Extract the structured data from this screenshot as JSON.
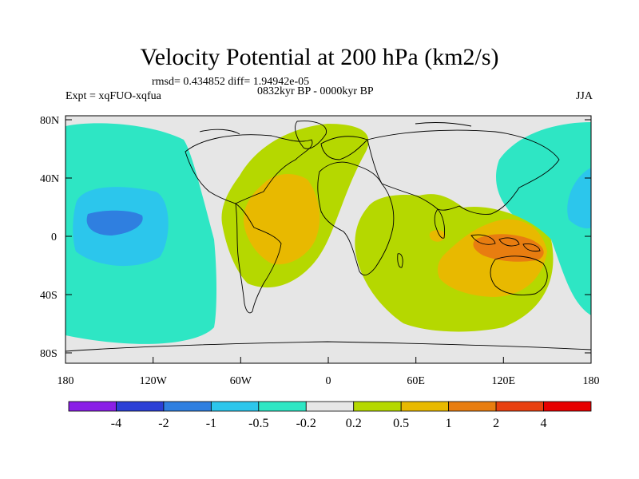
{
  "title": "Velocity Potential at 200 hPa (km2/s)",
  "stats_line": "rmsd= 0.434852  diff= 1.94942e-05",
  "period_line": "0832kyr BP - 0000kyr BP",
  "experiment_label": "Expt = xqFUO-xqfua",
  "season_label": "JJA",
  "map": {
    "lat_ticks": [
      "80N",
      "40N",
      "0",
      "40S",
      "80S"
    ],
    "lon_ticks": [
      "180",
      "120W",
      "60W",
      "0",
      "60E",
      "120E",
      "180"
    ]
  },
  "colorbar": {
    "labels": [
      "-4",
      "-2",
      "-1",
      "-0.5",
      "-0.2",
      "0.2",
      "0.5",
      "1",
      "2",
      "4"
    ],
    "colors": [
      "#8a1fe6",
      "#2b3fd6",
      "#2f7fe0",
      "#2cc6ec",
      "#2ee6c4",
      "#e6e6e6",
      "#b5d800",
      "#e8b900",
      "#e87d10",
      "#e84010",
      "#e60000"
    ]
  }
}
